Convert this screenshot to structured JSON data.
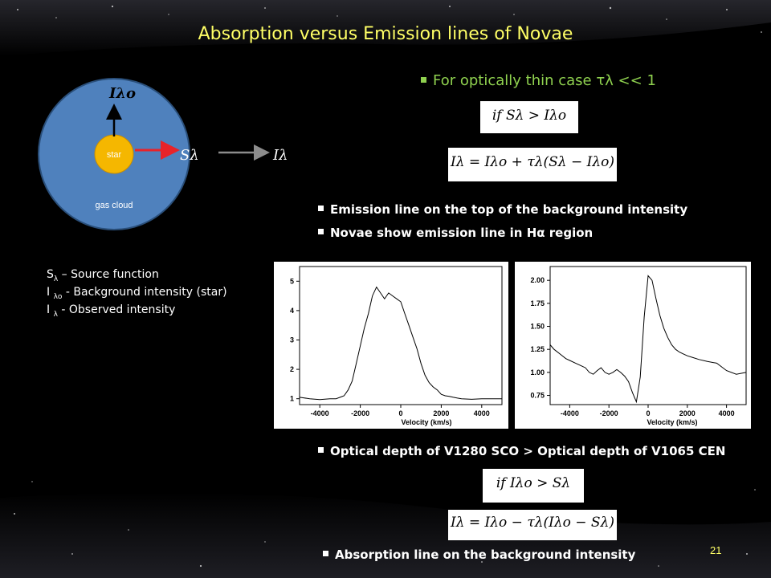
{
  "slide": {
    "title": "Absorption versus Emission lines of Novae",
    "page_number": "21",
    "background_color": "#000000",
    "title_color": "#ffff66"
  },
  "diagram": {
    "cloud_label": "gas cloud",
    "star_label": "star",
    "label_top": "Iλo",
    "label_source": "Sλ",
    "label_observed": "Iλ",
    "cloud_color": "#4f81bd",
    "star_color": "#f5b700",
    "arrow_red": "#e8232a",
    "arrow_gray": "#8c8c8c"
  },
  "legend": [
    {
      "sym": "S",
      "sub": "λ",
      "text": " – Source function"
    },
    {
      "sym": "I",
      "sub": "λo",
      "text": " - Background intensity (star)"
    },
    {
      "sym": "I",
      "sub": "λ",
      "text": " -  Observed intensity"
    }
  ],
  "bullets": {
    "thin_case": "For optically thin case τλ  << 1",
    "eq1": "if Sλ > Iλo",
    "eq2": "Iλ = Iλo + τλ(Sλ − Iλo)",
    "emission_top": "Emission line on the top of the background intensity",
    "novae_halpha": "Novae show emission line in Hα region",
    "optical_depth": "Optical depth of V1280 SCO > Optical depth of V1065 CEN",
    "eq3": "if Iλo > Sλ",
    "eq4": "Iλ = Iλo − τλ(Iλo − Sλ)",
    "absorption": "Absorption line on the background intensity",
    "accent_color": "#8fd14f"
  },
  "chart_data": [
    {
      "type": "line",
      "xlabel": "Velocity (km/s)",
      "ylabel": "",
      "xlim": [
        -5000,
        5000
      ],
      "ylim": [
        0.8,
        5.5
      ],
      "xticks": [
        -4000,
        -2000,
        0,
        2000,
        4000
      ],
      "yticks": [
        1,
        2,
        3,
        4,
        5
      ],
      "series": [
        {
          "x": [
            -5000,
            -4500,
            -4000,
            -3500,
            -3200,
            -3000,
            -2800,
            -2600,
            -2400,
            -2200,
            -2000,
            -1800,
            -1600,
            -1400,
            -1200,
            -1000,
            -800,
            -600,
            -400,
            -200,
            0,
            200,
            400,
            600,
            800,
            1000,
            1200,
            1400,
            1600,
            1800,
            2000,
            2200,
            2400,
            2600,
            2800,
            3000,
            3500,
            4000,
            4500,
            5000
          ],
          "y": [
            1.05,
            1.0,
            0.97,
            1.0,
            1.0,
            1.05,
            1.1,
            1.3,
            1.6,
            2.2,
            2.8,
            3.4,
            3.9,
            4.5,
            4.8,
            4.6,
            4.4,
            4.6,
            4.5,
            4.4,
            4.3,
            3.9,
            3.5,
            3.1,
            2.7,
            2.2,
            1.8,
            1.55,
            1.4,
            1.3,
            1.15,
            1.1,
            1.08,
            1.05,
            1.02,
            1.0,
            0.98,
            1.0,
            1.0,
            1.0
          ]
        }
      ]
    },
    {
      "type": "line",
      "xlabel": "Velocity (km/s)",
      "ylabel": "",
      "xlim": [
        -5000,
        5000
      ],
      "ylim": [
        0.65,
        2.15
      ],
      "xticks": [
        -4000,
        -2000,
        0,
        2000,
        4000
      ],
      "yticks": [
        0.75,
        1.0,
        1.25,
        1.5,
        1.75,
        2.0
      ],
      "series": [
        {
          "x": [
            -5000,
            -4800,
            -4500,
            -4200,
            -4000,
            -3700,
            -3400,
            -3200,
            -3000,
            -2800,
            -2600,
            -2400,
            -2200,
            -2000,
            -1800,
            -1600,
            -1400,
            -1200,
            -1000,
            -800,
            -600,
            -400,
            -200,
            0,
            200,
            400,
            600,
            800,
            1000,
            1200,
            1400,
            1600,
            1800,
            2000,
            2300,
            2600,
            3000,
            3500,
            4000,
            4500,
            5000
          ],
          "y": [
            1.3,
            1.25,
            1.2,
            1.15,
            1.13,
            1.1,
            1.07,
            1.05,
            1.0,
            0.98,
            1.02,
            1.05,
            1.0,
            0.98,
            1.0,
            1.03,
            1.0,
            0.96,
            0.9,
            0.78,
            0.68,
            0.95,
            1.6,
            2.05,
            2.0,
            1.8,
            1.62,
            1.48,
            1.38,
            1.3,
            1.25,
            1.22,
            1.2,
            1.18,
            1.16,
            1.14,
            1.12,
            1.1,
            1.02,
            0.98,
            1.0
          ]
        }
      ]
    }
  ]
}
